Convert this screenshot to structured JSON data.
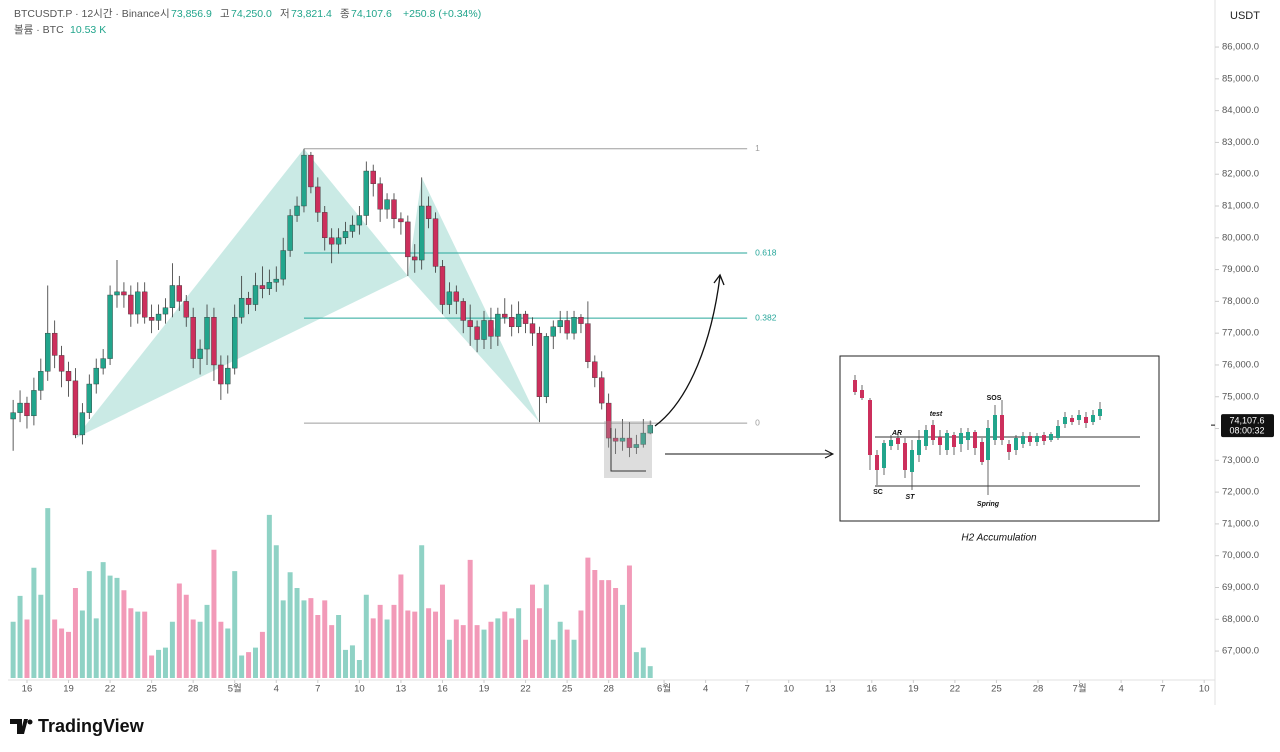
{
  "header": {
    "symbol": "BTCUSDT.P · 12시간 · Binance",
    "ohlc": [
      {
        "label": "시",
        "value": "73,856.9"
      },
      {
        "label": "고",
        "value": "74,250.0"
      },
      {
        "label": "저",
        "value": "73,821.4"
      },
      {
        "label": "종",
        "value": "74,107.6"
      }
    ],
    "change": "+250.8 (+0.34%)",
    "volume_label": "볼륨 · BTC",
    "volume_value": "10.53 K"
  },
  "chart_data": {
    "type": "candlestick",
    "axis_unit": "USDT",
    "up_color": "#22a58c",
    "down_color": "#cc2f5c",
    "volume_up_color": "#8fd2c5",
    "volume_down_color": "#f29ab8",
    "xlim": [
      14.63,
      101.78
    ],
    "ylim": [
      66090,
      87480
    ],
    "vlim": [
      0,
      160
    ],
    "xticks": [
      {
        "value": 16,
        "label": "16"
      },
      {
        "value": 19,
        "label": "19"
      },
      {
        "value": 22,
        "label": "22"
      },
      {
        "value": 25,
        "label": "25"
      },
      {
        "value": 28,
        "label": "28"
      },
      {
        "value": 31,
        "label": "5월"
      },
      {
        "value": 34,
        "label": "4"
      },
      {
        "value": 37,
        "label": "7"
      },
      {
        "value": 40,
        "label": "10"
      },
      {
        "value": 43,
        "label": "13"
      },
      {
        "value": 46,
        "label": "16"
      },
      {
        "value": 49,
        "label": "19"
      },
      {
        "value": 52,
        "label": "22"
      },
      {
        "value": 55,
        "label": "25"
      },
      {
        "value": 58,
        "label": "28"
      },
      {
        "value": 62,
        "label": "6월"
      },
      {
        "value": 65,
        "label": "4"
      },
      {
        "value": 68,
        "label": "7"
      },
      {
        "value": 71,
        "label": "10"
      },
      {
        "value": 74,
        "label": "13"
      },
      {
        "value": 77,
        "label": "16"
      },
      {
        "value": 80,
        "label": "19"
      },
      {
        "value": 83,
        "label": "22"
      },
      {
        "value": 86,
        "label": "25"
      },
      {
        "value": 89,
        "label": "28"
      },
      {
        "value": 92,
        "label": "7월"
      },
      {
        "value": 95,
        "label": "4"
      },
      {
        "value": 98,
        "label": "7"
      },
      {
        "value": 101,
        "label": "10"
      }
    ],
    "yticks": [
      {
        "value": 67000,
        "label": "67,000.0"
      },
      {
        "value": 68000,
        "label": "68,000.0"
      },
      {
        "value": 69000,
        "label": "69,000.0"
      },
      {
        "value": 70000,
        "label": "70,000.0"
      },
      {
        "value": 71000,
        "label": "71,000.0"
      },
      {
        "value": 72000,
        "label": "72,000.0"
      },
      {
        "value": 73000,
        "label": "73,000.0"
      },
      {
        "value": 74000,
        "label": "74,000.0"
      },
      {
        "value": 75000,
        "label": "75,000.0"
      },
      {
        "value": 76000,
        "label": "76,000.0"
      },
      {
        "value": 77000,
        "label": "77,000.0"
      },
      {
        "value": 78000,
        "label": "78,000.0"
      },
      {
        "value": 79000,
        "label": "79,000.0"
      },
      {
        "value": 80000,
        "label": "80,000.0"
      },
      {
        "value": 81000,
        "label": "81,000.0"
      },
      {
        "value": 82000,
        "label": "82,000.0"
      },
      {
        "value": 83000,
        "label": "83,000.0"
      },
      {
        "value": 84000,
        "label": "84,000.0"
      },
      {
        "value": 85000,
        "label": "85,000.0"
      },
      {
        "value": 86000,
        "label": "86,000.0"
      }
    ],
    "x": [
      15,
      15.5,
      16,
      16.5,
      17,
      17.5,
      18,
      18.5,
      19,
      19.5,
      20,
      20.5,
      21,
      21.5,
      22,
      22.5,
      23,
      23.5,
      24,
      24.5,
      25,
      25.5,
      26,
      26.5,
      27,
      27.5,
      28,
      28.5,
      29,
      29.5,
      30,
      30.5,
      31,
      31.5,
      32,
      32.5,
      33,
      33.5,
      34,
      34.5,
      35,
      35.5,
      36,
      36.5,
      37,
      37.5,
      38,
      38.5,
      39,
      39.5,
      40,
      40.5,
      41,
      41.5,
      42,
      42.5,
      43,
      43.5,
      44,
      44.5,
      45,
      45.5,
      46,
      46.5,
      47,
      47.5,
      48,
      48.5,
      49,
      49.5,
      50,
      50.5,
      51,
      51.5,
      52,
      52.5,
      53,
      53.5,
      54,
      54.5,
      55,
      55.5,
      56,
      56.5,
      57,
      57.5,
      58,
      58.5,
      59,
      59.5,
      60,
      60.5,
      61
    ],
    "open": [
      74300,
      74500,
      74800,
      74400,
      75200,
      75800,
      77000,
      76300,
      75800,
      75500,
      73800,
      74500,
      75400,
      75900,
      76200,
      78200,
      78300,
      78200,
      77600,
      78300,
      77500,
      77400,
      77600,
      77800,
      78500,
      78000,
      77500,
      76200,
      76500,
      77500,
      76000,
      75400,
      75900,
      77500,
      78100,
      77900,
      78500,
      78400,
      78600,
      78700,
      79600,
      80700,
      81000,
      82600,
      81600,
      80800,
      80000,
      79800,
      80000,
      80200,
      80400,
      80700,
      82100,
      81700,
      80900,
      81200,
      80600,
      80500,
      79400,
      79300,
      81000,
      80600,
      79100,
      77900,
      78300,
      78000,
      77400,
      77200,
      76800,
      77400,
      76900,
      77600,
      77500,
      77200,
      77600,
      77300,
      77000,
      75000,
      76900,
      77200,
      77400,
      77000,
      77500,
      77300,
      76100,
      75600,
      74800,
      73700,
      73600,
      73700,
      73400,
      73500,
      73856.9
    ],
    "high": [
      74900,
      75200,
      75000,
      75600,
      76200,
      78500,
      77400,
      76600,
      76100,
      75900,
      74800,
      75700,
      76200,
      76500,
      78500,
      79300,
      78600,
      78500,
      78600,
      78600,
      77900,
      77900,
      78100,
      79200,
      78800,
      78200,
      77800,
      76800,
      77900,
      77800,
      76300,
      76300,
      77900,
      78800,
      78300,
      78900,
      79100,
      79000,
      79100,
      80000,
      80900,
      81300,
      82800,
      82700,
      81900,
      81000,
      80300,
      80300,
      80500,
      80700,
      81000,
      82400,
      82300,
      81900,
      81400,
      81400,
      80800,
      80700,
      79800,
      81900,
      81300,
      80800,
      79300,
      78600,
      78500,
      78100,
      77900,
      77400,
      77700,
      77800,
      77800,
      78100,
      77900,
      78000,
      77700,
      77500,
      77200,
      77000,
      77400,
      77700,
      77700,
      77700,
      77600,
      78000,
      76300,
      75800,
      75100,
      74000,
      74300,
      74200,
      73800,
      74300,
      74250
    ],
    "low": [
      73300,
      74200,
      74000,
      74100,
      74900,
      75500,
      75900,
      75300,
      75000,
      73700,
      73500,
      74300,
      75100,
      75700,
      76000,
      77800,
      77800,
      77200,
      77300,
      77300,
      77000,
      77100,
      77300,
      77500,
      77700,
      77200,
      75900,
      75700,
      76000,
      75500,
      74900,
      75100,
      75700,
      77300,
      77600,
      77700,
      78100,
      78200,
      78300,
      78500,
      79400,
      80500,
      80800,
      81400,
      80500,
      79600,
      79200,
      79500,
      79800,
      80000,
      80100,
      80400,
      81300,
      80500,
      80600,
      80300,
      80100,
      78800,
      78900,
      79000,
      80300,
      78900,
      77600,
      77600,
      77600,
      77000,
      76600,
      76400,
      76500,
      76500,
      76600,
      77300,
      76900,
      77000,
      77000,
      76600,
      74200,
      74800,
      76500,
      77000,
      76800,
      76800,
      77000,
      75900,
      75300,
      74600,
      73400,
      73200,
      73300,
      73100,
      73200,
      73400,
      73821.4
    ],
    "close": [
      74500,
      74800,
      74400,
      75200,
      75800,
      77000,
      76300,
      75800,
      75500,
      73800,
      74500,
      75400,
      75900,
      76200,
      78200,
      78300,
      78200,
      77600,
      78300,
      77500,
      77400,
      77600,
      77800,
      78500,
      78000,
      77500,
      76200,
      76500,
      77500,
      76000,
      75400,
      75900,
      77500,
      78100,
      77900,
      78500,
      78400,
      78600,
      78700,
      79600,
      80700,
      81000,
      82600,
      81600,
      80800,
      80000,
      79800,
      80000,
      80200,
      80400,
      80700,
      82100,
      81700,
      80900,
      81200,
      80600,
      80500,
      79400,
      79300,
      81000,
      80600,
      79100,
      77900,
      78300,
      78000,
      77400,
      77200,
      76800,
      77400,
      76900,
      77600,
      77500,
      77200,
      77600,
      77300,
      77000,
      75000,
      76900,
      77200,
      77400,
      77000,
      77500,
      77300,
      76100,
      75600,
      74800,
      73700,
      73600,
      73700,
      73400,
      73500,
      73856.9,
      74107.6
    ],
    "volume": [
      50,
      73,
      52,
      98,
      74,
      151,
      52,
      44,
      41,
      80,
      60,
      95,
      53,
      103,
      91,
      89,
      78,
      62,
      59,
      59,
      20,
      25,
      27,
      50,
      84,
      74,
      52,
      50,
      65,
      114,
      50,
      44,
      95,
      20,
      23,
      27,
      41,
      145,
      118,
      69,
      94,
      80,
      69,
      71,
      56,
      69,
      47,
      56,
      25,
      29,
      16,
      74,
      53,
      65,
      52,
      65,
      92,
      60,
      59,
      118,
      62,
      59,
      83,
      34,
      52,
      47,
      105,
      47,
      43,
      50,
      53,
      59,
      53,
      62,
      34,
      83,
      62,
      83,
      34,
      50,
      43,
      34,
      60,
      107,
      96,
      87,
      87,
      80,
      65,
      100,
      23,
      27,
      10.53
    ],
    "pattern": {
      "color": "#9fd9cf",
      "x": [
        19.5,
        36,
        43.5,
        44.5,
        53
      ],
      "y": [
        73700,
        82800,
        78800,
        81900,
        74200
      ]
    },
    "fib": {
      "x": [
        36,
        68
      ],
      "levels": [
        {
          "value": 82800,
          "label": "1",
          "color": "#9e9e9e"
        },
        {
          "value": 79520,
          "label": "0.618",
          "color": "#26a69a"
        },
        {
          "value": 77475,
          "label": "0.382",
          "color": "#26a69a"
        },
        {
          "value": 74170,
          "label": "0",
          "color": "#9e9e9e"
        }
      ]
    },
    "last_price": {
      "value": 74107.6,
      "label": "74,107.6"
    },
    "countdown": "08:00:32"
  },
  "inset": {
    "caption": "H2 Accumulation",
    "labels": [
      "SC",
      "AR",
      "ST",
      "test",
      "SOS",
      "Spring"
    ]
  },
  "logo": "TradingView"
}
